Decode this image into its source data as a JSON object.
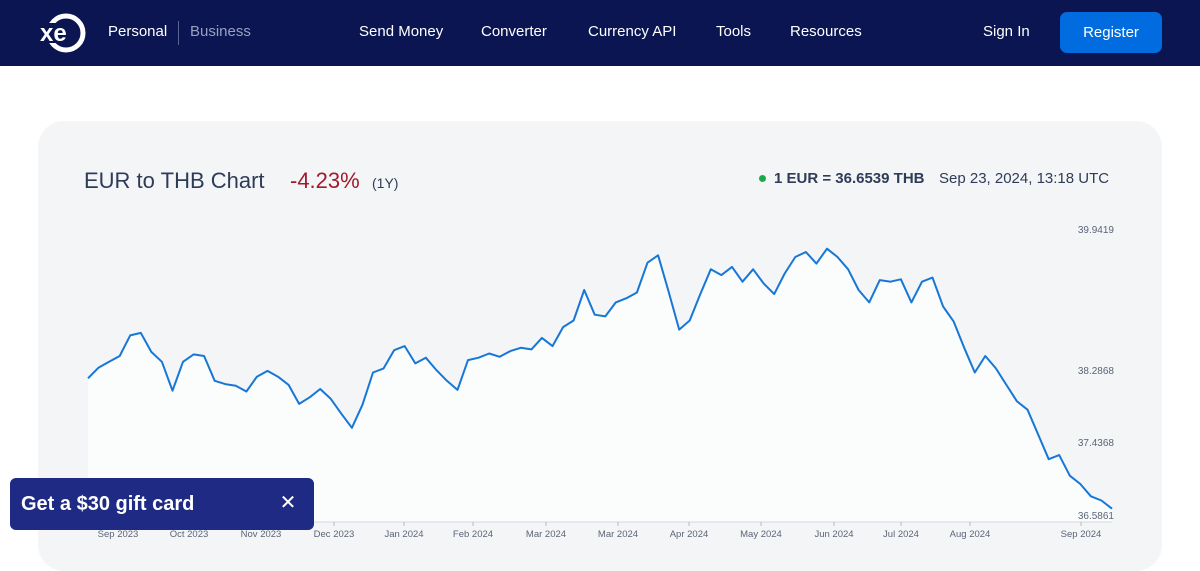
{
  "nav": {
    "logo_text": "xe",
    "segments": {
      "personal": "Personal",
      "business": "Business"
    },
    "menu": [
      "Send Money",
      "Converter",
      "Currency API",
      "Tools",
      "Resources"
    ],
    "sign_in": "Sign In",
    "register": "Register"
  },
  "chart_header": {
    "title": "EUR to THB Chart",
    "change": "-4.23%",
    "period": "(1Y)",
    "rate": "1 EUR = 36.6539 THB",
    "timestamp": "Sep 23, 2024, 13:18 UTC"
  },
  "chart_data": {
    "type": "area",
    "title": "EUR to THB Chart",
    "xlabel": "",
    "ylabel": "",
    "y_ticks": [
      "39.9419",
      "38.2868",
      "37.4368",
      "36.5861"
    ],
    "ylim": [
      36.5861,
      39.9419
    ],
    "x_ticks": [
      "Sep 2023",
      "Oct 2023",
      "Nov 2023",
      "Dec 2023",
      "Jan 2024",
      "Feb 2024",
      "Mar 2024",
      "Mar 2024",
      "Apr 2024",
      "May 2024",
      "Jun 2024",
      "Jul 2024",
      "Aug 2024",
      "Sep 2024"
    ],
    "grid": false,
    "legend": "none",
    "series": [
      {
        "values": [
          38.23,
          38.36,
          38.43,
          38.5,
          38.75,
          38.78,
          38.55,
          38.43,
          38.08,
          38.43,
          38.52,
          38.5,
          38.2,
          38.16,
          38.14,
          38.07,
          38.25,
          38.32,
          38.25,
          38.15,
          37.92,
          38.0,
          38.1,
          37.98,
          37.8,
          37.63,
          37.91,
          38.3,
          38.35,
          38.57,
          38.62,
          38.41,
          38.48,
          38.33,
          38.2,
          38.09,
          38.45,
          38.48,
          38.53,
          38.49,
          38.56,
          38.6,
          38.58,
          38.72,
          38.62,
          38.85,
          38.93,
          39.3,
          39.0,
          38.98,
          39.15,
          39.2,
          39.27,
          39.63,
          39.72,
          39.28,
          38.82,
          38.93,
          39.25,
          39.55,
          39.48,
          39.58,
          39.4,
          39.55,
          39.38,
          39.25,
          39.5,
          39.7,
          39.76,
          39.62,
          39.8,
          39.7,
          39.55,
          39.3,
          39.15,
          39.42,
          39.4,
          39.43,
          39.15,
          39.4,
          39.45,
          39.1,
          38.92,
          38.6,
          38.3,
          38.5,
          38.35,
          38.15,
          37.95,
          37.85,
          37.55,
          37.25,
          37.3,
          37.05,
          36.95,
          36.8,
          36.75,
          36.65
        ]
      }
    ]
  },
  "promo": {
    "text": "Get a $30 gift card",
    "close": "✕"
  }
}
